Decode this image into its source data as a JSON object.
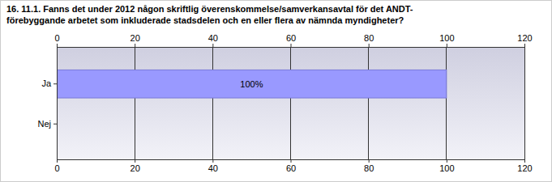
{
  "chart_data": {
    "type": "bar",
    "orientation": "horizontal",
    "title": "16. 11.1. Fanns det under 2012 någon skriftlig överenskommelse/samverkansavtal för det ANDT-\nförebyggande arbetet som inkluderade stadsdelen och en eller flera av nämnda myndigheter?",
    "categories": [
      "Ja",
      "Nej"
    ],
    "values": [
      100,
      0
    ],
    "value_labels": [
      "100%",
      null
    ],
    "data_labels": true,
    "color": "#9999ff",
    "xlim": [
      0,
      120
    ],
    "xticks": [
      0,
      20,
      40,
      60,
      80,
      100,
      120
    ],
    "grid": true
  }
}
